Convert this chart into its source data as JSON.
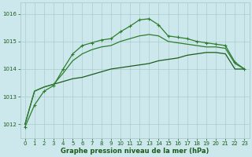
{
  "background_color": "#cce8ec",
  "grid_color_major": "#aacccc",
  "grid_color_minor": "#bbdddd",
  "line_dark_color": "#1a5c1a",
  "line_mid_color": "#2e7d2e",
  "line_top_color": "#2e7d2e",
  "xlabel": "Graphe pression niveau de la mer (hPa)",
  "xlim": [
    -0.5,
    23.5
  ],
  "ylim": [
    1011.5,
    1016.4
  ],
  "yticks": [
    1012,
    1013,
    1014,
    1015,
    1016
  ],
  "xticks": [
    0,
    1,
    2,
    3,
    4,
    5,
    6,
    7,
    8,
    9,
    10,
    11,
    12,
    13,
    14,
    15,
    16,
    17,
    18,
    19,
    20,
    21,
    22,
    23
  ],
  "line_dark_x": [
    0,
    1,
    2,
    3,
    4,
    5,
    6,
    7,
    8,
    9,
    10,
    11,
    12,
    13,
    14,
    15,
    16,
    17,
    18,
    19,
    20,
    21,
    22,
    23
  ],
  "line_dark_y": [
    1012.0,
    1013.2,
    1013.35,
    1013.45,
    1013.55,
    1013.65,
    1013.7,
    1013.8,
    1013.9,
    1014.0,
    1014.05,
    1014.1,
    1014.15,
    1014.2,
    1014.3,
    1014.35,
    1014.4,
    1014.5,
    1014.55,
    1014.6,
    1014.6,
    1014.55,
    1014.0,
    1014.0
  ],
  "line_mid_x": [
    0,
    1,
    2,
    3,
    4,
    5,
    6,
    7,
    8,
    9,
    10,
    11,
    12,
    13,
    14,
    15,
    16,
    17,
    18,
    19,
    20,
    21,
    22,
    23
  ],
  "line_mid_y": [
    1012.0,
    1013.2,
    1013.35,
    1013.45,
    1013.85,
    1014.3,
    1014.55,
    1014.7,
    1014.8,
    1014.85,
    1015.0,
    1015.1,
    1015.2,
    1015.25,
    1015.2,
    1015.0,
    1014.95,
    1014.9,
    1014.85,
    1014.8,
    1014.8,
    1014.75,
    1014.2,
    1014.0
  ],
  "line_top_x": [
    0,
    1,
    2,
    3,
    4,
    5,
    6,
    7,
    8,
    9,
    10,
    11,
    12,
    13,
    14,
    15,
    16,
    17,
    18,
    19,
    20,
    21,
    22,
    23
  ],
  "line_top_y": [
    1011.9,
    1012.7,
    1013.2,
    1013.4,
    1014.0,
    1014.55,
    1014.85,
    1014.95,
    1015.05,
    1015.1,
    1015.35,
    1015.55,
    1015.78,
    1015.82,
    1015.6,
    1015.2,
    1015.15,
    1015.1,
    1015.0,
    1014.95,
    1014.9,
    1014.85,
    1014.25,
    1014.0
  ]
}
